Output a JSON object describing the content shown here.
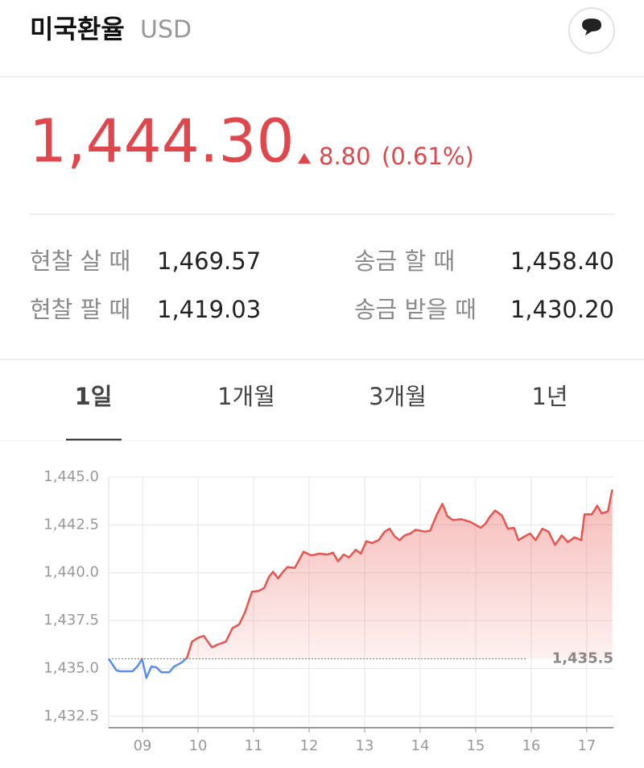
{
  "header": {
    "title": "미국환율",
    "currency": "USD"
  },
  "quote": {
    "price": "1,444.30",
    "change": "8.80",
    "change_pct": "(0.61%)"
  },
  "rates": [
    [
      {
        "label": "현찰 살 때",
        "value": "1,469.57"
      },
      {
        "label": "송금 할 때",
        "value": "1,458.40"
      }
    ],
    [
      {
        "label": "현찰 팔 때",
        "value": "1,419.03"
      },
      {
        "label": "송금 받을 때",
        "value": "1,430.20"
      }
    ]
  ],
  "tabs": [
    "1일",
    "1개월",
    "3개월",
    "1년"
  ],
  "chart_data": {
    "type": "line",
    "x": [
      8.39,
      8.53,
      8.6,
      8.82,
      8.92,
      8.99,
      9.07,
      9.16,
      9.25,
      9.34,
      9.48,
      9.57,
      9.7,
      9.8,
      9.89,
      10.0,
      10.1,
      10.25,
      10.36,
      10.5,
      10.62,
      10.74,
      10.84,
      10.97,
      11.09,
      11.19,
      11.28,
      11.35,
      11.44,
      11.53,
      11.61,
      11.74,
      11.9,
      12.04,
      12.18,
      12.33,
      12.43,
      12.52,
      12.62,
      12.72,
      12.84,
      12.93,
      13.03,
      13.13,
      13.25,
      13.36,
      13.45,
      13.54,
      13.63,
      13.72,
      13.82,
      13.92,
      14.08,
      14.18,
      14.3,
      14.4,
      14.49,
      14.59,
      14.74,
      14.91,
      15.09,
      15.17,
      15.26,
      15.35,
      15.47,
      15.58,
      15.69,
      15.77,
      15.88,
      15.98,
      16.08,
      16.2,
      16.31,
      16.43,
      16.55,
      16.66,
      16.78,
      16.9,
      16.96,
      17.09,
      17.19,
      17.27,
      17.38,
      17.46
    ],
    "series": [
      {
        "color": "#e8554e",
        "color_below": "#5b8def",
        "values": [
          1435.5,
          1434.9,
          1434.85,
          1434.85,
          1435.15,
          1435.5,
          1434.5,
          1435.1,
          1435.05,
          1434.8,
          1434.8,
          1435.1,
          1435.3,
          1435.55,
          1436.4,
          1436.6,
          1436.7,
          1436.1,
          1436.25,
          1436.4,
          1437.1,
          1437.3,
          1437.9,
          1439.0,
          1439.05,
          1439.2,
          1439.8,
          1440.05,
          1439.7,
          1440.05,
          1440.3,
          1440.25,
          1441.1,
          1440.9,
          1441.0,
          1440.95,
          1441.05,
          1440.6,
          1440.95,
          1440.8,
          1441.2,
          1441.0,
          1441.65,
          1441.55,
          1441.7,
          1442.15,
          1442.3,
          1441.9,
          1441.7,
          1441.95,
          1442.05,
          1442.25,
          1442.15,
          1442.2,
          1443.05,
          1443.6,
          1442.95,
          1442.75,
          1442.8,
          1442.65,
          1442.35,
          1442.55,
          1442.95,
          1443.25,
          1443.0,
          1442.3,
          1442.35,
          1441.7,
          1441.9,
          1442.05,
          1441.7,
          1442.3,
          1442.15,
          1441.45,
          1441.95,
          1441.6,
          1441.85,
          1441.7,
          1443.05,
          1443.05,
          1443.5,
          1443.1,
          1443.2,
          1444.35
        ]
      }
    ],
    "reference_line": {
      "value": 1435.5,
      "label": "1,435.5"
    },
    "xlim": [
      8.39,
      17.48
    ],
    "ylim": [
      1431.9,
      1445
    ],
    "xticks": [
      {
        "value": 9,
        "label": "09"
      },
      10,
      11,
      12,
      13,
      14,
      15,
      16,
      17
    ],
    "yticks": [
      {
        "value": 1432.5,
        "label": "1,432.5"
      },
      {
        "value": 1435,
        "label": "1,435.0"
      },
      {
        "value": 1437.5,
        "label": "1,437.5"
      },
      {
        "value": 1440,
        "label": "1,440.0"
      },
      {
        "value": 1442.5,
        "label": "1,442.5"
      },
      {
        "value": 1445,
        "label": "1,445.0"
      }
    ],
    "grid": true
  }
}
